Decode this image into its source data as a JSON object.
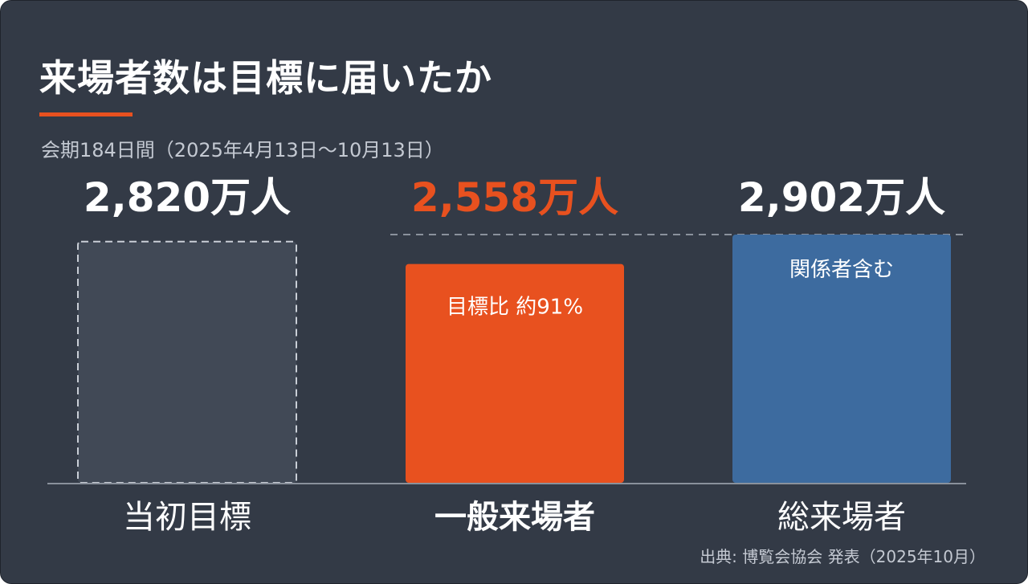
{
  "title": "来場者数は目標に届いたか",
  "subtitle": "会期184日間（2025年4月13日～10月13日）",
  "source": "出典: 博覧会協会 発表（2025年10月）",
  "colors": {
    "background": "#333a46",
    "accent": "#e8511f",
    "target_fill": "#414956",
    "target_border": "#c9ced6",
    "general": "#e8511f",
    "total": "#3d6b9f",
    "label_white": "#ffffff"
  },
  "chart_data": {
    "type": "bar",
    "title": "来場者数は目標に届いたか",
    "subtitle": "会期184日間（2025年4月13日～10月13日）",
    "unit": "万人",
    "categories": [
      "当初目標",
      "一般来場者",
      "総来場者"
    ],
    "values": [
      2820,
      2558,
      2902
    ],
    "value_labels": [
      "2,820万人",
      "2,558万人",
      "2,902万人"
    ],
    "bar_annotations": [
      "",
      "目標比 約91%",
      "関係者含む"
    ],
    "bar_styles": [
      "dashed-outline",
      "solid-accent",
      "solid-blue"
    ],
    "reference_line": {
      "value": 2902,
      "style": "dashed"
    },
    "ylim": [
      0,
      2902
    ],
    "grid": false,
    "legend": "none"
  }
}
